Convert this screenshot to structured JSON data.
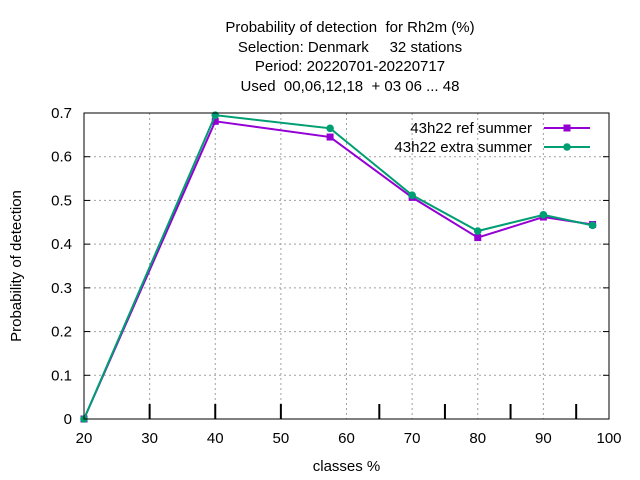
{
  "title_lines": [
    "Probability of detection  for Rh2m (%)",
    "Selection: Denmark     32 stations",
    "Period: 20220701-20220717",
    "Used  00,06,12,18  + 03 06 ... 48"
  ],
  "chart_data": {
    "type": "line",
    "xlabel": "classes %",
    "ylabel": "Probability of detection",
    "xlim": [
      20,
      100
    ],
    "ylim": [
      0,
      0.7
    ],
    "x_ticks": [
      "20",
      "30",
      "40",
      "50",
      "60",
      "70",
      "80",
      "90",
      "100"
    ],
    "y_ticks": [
      "0",
      "0.1",
      "0.2",
      "0.3",
      "0.4",
      "0.5",
      "0.6",
      "0.7"
    ],
    "grid": true,
    "legend_position": "top-right",
    "minor_ticks_x": [
      30,
      40,
      50,
      65,
      75,
      85,
      95
    ],
    "series": [
      {
        "name": "43h22 ref summer",
        "color": "#9400d3",
        "marker": "square",
        "x": [
          20,
          40,
          57.5,
          70,
          80,
          90,
          97.5
        ],
        "y": [
          0.0,
          0.681,
          0.645,
          0.507,
          0.415,
          0.462,
          0.445
        ]
      },
      {
        "name": "43h22 extra summer",
        "color": "#009e73",
        "marker": "circle",
        "x": [
          20,
          40,
          57.5,
          70,
          80,
          90,
          97.5
        ],
        "y": [
          0.0,
          0.695,
          0.665,
          0.512,
          0.43,
          0.467,
          0.443
        ]
      }
    ]
  }
}
